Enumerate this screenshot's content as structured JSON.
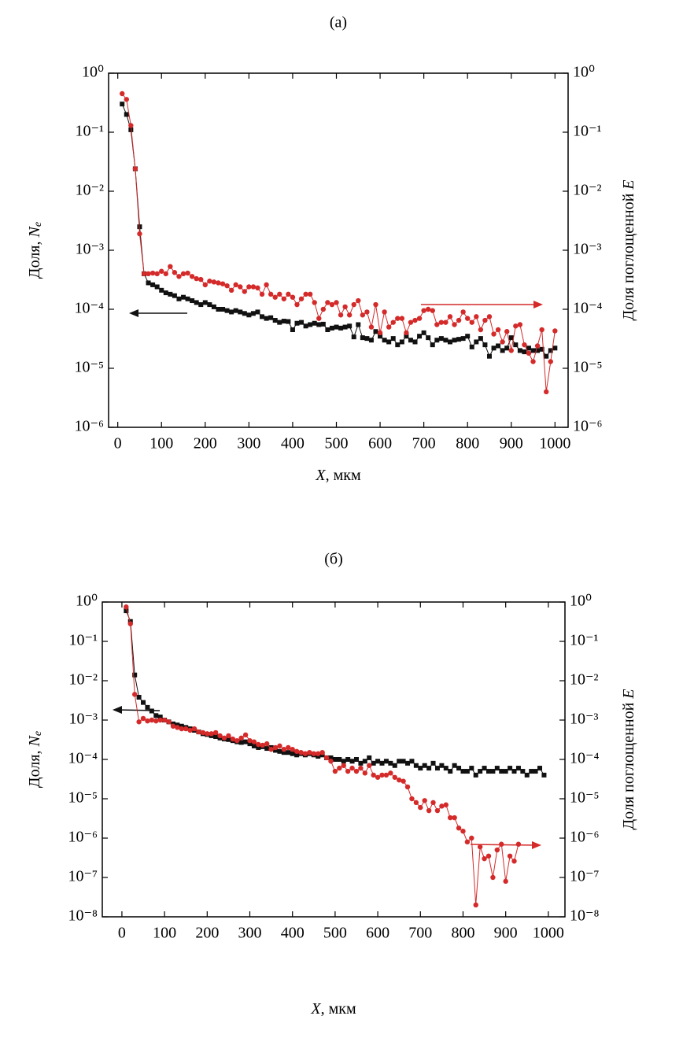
{
  "chart_data": [
    {
      "type": "line",
      "title": "(a)",
      "yscale": "log",
      "y2scale": "log",
      "xlabel_parts": [
        "X",
        ", мкм"
      ],
      "ylabel_parts": [
        "Доля, ",
        "N",
        "e"
      ],
      "y2label_parts": [
        "Доля поглощенной ",
        "E"
      ],
      "xlim": [
        -21,
        1030
      ],
      "xticks": [
        0,
        100,
        200,
        300,
        400,
        500,
        600,
        700,
        800,
        900,
        1000
      ],
      "ylim": [
        1e-06,
        1
      ],
      "yticks": [
        {
          "value": 1,
          "label": "10⁰"
        },
        {
          "value": 0.1,
          "label": "10⁻¹"
        },
        {
          "value": 0.01,
          "label": "10⁻²"
        },
        {
          "value": 0.001,
          "label": "10⁻³"
        },
        {
          "value": 0.0001,
          "label": "10⁻⁴"
        },
        {
          "value": 1e-05,
          "label": "10⁻⁵"
        },
        {
          "value": 1e-06,
          "label": "10⁻⁶"
        }
      ],
      "y2lim": [
        1e-06,
        1
      ],
      "y2ticks": [
        {
          "value": 1,
          "label": "10⁰"
        },
        {
          "value": 0.1,
          "label": "10⁻¹"
        },
        {
          "value": 0.01,
          "label": "10⁻²"
        },
        {
          "value": 0.001,
          "label": "10⁻³"
        },
        {
          "value": 0.0001,
          "label": "10⁻⁴"
        },
        {
          "value": 1e-05,
          "label": "10⁻⁵"
        },
        {
          "value": 1e-06,
          "label": "10⁻⁶"
        }
      ],
      "x": [
        10,
        20,
        30,
        40,
        50,
        60,
        70,
        80,
        90,
        100,
        110,
        120,
        130,
        140,
        150,
        160,
        170,
        180,
        190,
        200,
        210,
        220,
        230,
        240,
        250,
        260,
        270,
        280,
        290,
        300,
        310,
        320,
        330,
        340,
        350,
        360,
        370,
        380,
        390,
        400,
        410,
        420,
        430,
        440,
        450,
        460,
        470,
        480,
        490,
        500,
        510,
        520,
        530,
        540,
        550,
        560,
        570,
        580,
        590,
        600,
        610,
        620,
        630,
        640,
        650,
        660,
        670,
        680,
        690,
        700,
        710,
        720,
        730,
        740,
        750,
        760,
        770,
        780,
        790,
        800,
        810,
        820,
        830,
        840,
        850,
        860,
        870,
        880,
        890,
        900,
        910,
        920,
        930,
        940,
        950,
        960,
        970,
        980,
        990,
        1000
      ],
      "series": [
        {
          "color": "#111111",
          "marker": "square",
          "axis": "y",
          "values": [
            0.3,
            0.2,
            0.11,
            0.024,
            0.0025,
            0.0004,
            0.00028,
            0.00026,
            0.00024,
            0.00021,
            0.00019,
            0.00018,
            0.00017,
            0.00015,
            0.00016,
            0.00015,
            0.00014,
            0.00013,
            0.00012,
            0.00013,
            0.00012,
            0.00011,
            0.0001,
            0.0001,
            9.5e-05,
            9e-05,
            9.5e-05,
            9e-05,
            8.5e-05,
            8e-05,
            8.5e-05,
            9e-05,
            7.5e-05,
            7e-05,
            7.2e-05,
            6.5e-05,
            6e-05,
            6.3e-05,
            6.2e-05,
            4.5e-05,
            5.8e-05,
            6e-05,
            5.2e-05,
            5.5e-05,
            5.8e-05,
            5.5e-05,
            5.6e-05,
            4.5e-05,
            4.8e-05,
            5e-05,
            4.8e-05,
            5e-05,
            5.2e-05,
            3.4e-05,
            5.5e-05,
            3.3e-05,
            3.2e-05,
            3e-05,
            4.2e-05,
            3.5e-05,
            3e-05,
            2.8e-05,
            3.2e-05,
            2.5e-05,
            2.8e-05,
            3.5e-05,
            3e-05,
            2.8e-05,
            3.5e-05,
            4e-05,
            3.3e-05,
            2.5e-05,
            3e-05,
            3.2e-05,
            3e-05,
            2.8e-05,
            3e-05,
            3.1e-05,
            3.2e-05,
            3.5e-05,
            2.3e-05,
            2.8e-05,
            3.2e-05,
            2.5e-05,
            1.6e-05,
            2.2e-05,
            2.4e-05,
            2e-05,
            2.2e-05,
            3.3e-05,
            2.5e-05,
            2e-05,
            1.9e-05,
            2.2e-05,
            2e-05,
            2e-05,
            2.1e-05,
            1.6e-05,
            2e-05,
            2.2e-05
          ]
        },
        {
          "color": "#d42a2a",
          "marker": "circle",
          "axis": "y2",
          "values": [
            0.45,
            0.36,
            0.13,
            0.024,
            0.0019,
            0.0004,
            0.0004,
            0.00041,
            0.0004,
            0.00044,
            0.0004,
            0.00053,
            0.00042,
            0.00036,
            0.0004,
            0.00041,
            0.00036,
            0.00033,
            0.00032,
            0.00026,
            0.0003,
            0.00029,
            0.00028,
            0.00027,
            0.00025,
            0.00021,
            0.00026,
            0.00024,
            0.0002,
            0.00024,
            0.00024,
            0.00023,
            0.00018,
            0.00026,
            0.00018,
            0.00016,
            0.00018,
            0.00015,
            0.00018,
            0.00016,
            0.00012,
            0.00015,
            0.00018,
            0.00018,
            0.00013,
            7e-05,
            0.0001,
            0.00013,
            0.00012,
            0.00013,
            8e-05,
            0.00011,
            8e-05,
            0.00012,
            0.00014,
            8e-05,
            9e-05,
            5e-05,
            0.00012,
            4e-05,
            9e-05,
            5e-05,
            6e-05,
            7e-05,
            7e-05,
            4e-05,
            6e-05,
            6.5e-05,
            7e-05,
            9.5e-05,
            0.0001,
            9.5e-05,
            5.5e-05,
            6e-05,
            6e-05,
            7.5e-05,
            5.5e-05,
            6.5e-05,
            9e-05,
            7e-05,
            6e-05,
            7.5e-05,
            4.5e-05,
            6.5e-05,
            7.5e-05,
            3.8e-05,
            4.5e-05,
            2.8e-05,
            4.2e-05,
            2e-05,
            5.2e-05,
            5.5e-05,
            2.5e-05,
            1.8e-05,
            1.3e-05,
            2.4e-05,
            4.5e-05,
            4e-06,
            1.3e-05,
            4.3e-05
          ]
        }
      ]
    },
    {
      "type": "line",
      "title": "(б)",
      "yscale": "log",
      "y2scale": "log",
      "xlabel_parts": [
        "X",
        ", мкм"
      ],
      "ylabel_parts": [
        "Доля, ",
        "N",
        "e"
      ],
      "y2label_parts": [
        "Доля поглощенной ",
        "E"
      ],
      "xlim": [
        -46,
        1039
      ],
      "xticks": [
        0,
        100,
        200,
        300,
        400,
        500,
        600,
        700,
        800,
        900,
        1000
      ],
      "ylim": [
        1e-08,
        1
      ],
      "yticks": [
        {
          "value": 1,
          "label": "10⁰"
        },
        {
          "value": 0.1,
          "label": "10⁻¹"
        },
        {
          "value": 0.01,
          "label": "10⁻²"
        },
        {
          "value": 0.001,
          "label": "10⁻³"
        },
        {
          "value": 0.0001,
          "label": "10⁻⁴"
        },
        {
          "value": 1e-05,
          "label": "10⁻⁵"
        },
        {
          "value": 1e-06,
          "label": "10⁻⁶"
        },
        {
          "value": 1e-07,
          "label": "10⁻⁷"
        },
        {
          "value": 1e-08,
          "label": "10⁻⁸"
        }
      ],
      "y2lim": [
        1e-08,
        1
      ],
      "y2ticks": [
        {
          "value": 1,
          "label": "10⁰"
        },
        {
          "value": 0.1,
          "label": "10⁻¹"
        },
        {
          "value": 0.01,
          "label": "10⁻²"
        },
        {
          "value": 0.001,
          "label": "10⁻³"
        },
        {
          "value": 0.0001,
          "label": "10⁻⁴"
        },
        {
          "value": 1e-05,
          "label": "10⁻⁵"
        },
        {
          "value": 1e-06,
          "label": "10⁻⁶"
        },
        {
          "value": 1e-07,
          "label": "10⁻⁷"
        },
        {
          "value": 1e-08,
          "label": "10⁻⁸"
        }
      ],
      "x": [
        10,
        20,
        30,
        40,
        50,
        60,
        70,
        80,
        90,
        100,
        110,
        120,
        130,
        140,
        150,
        160,
        170,
        180,
        190,
        200,
        210,
        220,
        230,
        240,
        250,
        260,
        270,
        280,
        290,
        300,
        310,
        320,
        330,
        340,
        350,
        360,
        370,
        380,
        390,
        400,
        410,
        420,
        430,
        440,
        450,
        460,
        470,
        480,
        490,
        500,
        510,
        520,
        530,
        540,
        550,
        560,
        570,
        580,
        590,
        600,
        610,
        620,
        630,
        640,
        650,
        660,
        670,
        680,
        690,
        700,
        710,
        720,
        730,
        740,
        750,
        760,
        770,
        780,
        790,
        800,
        810,
        820,
        830,
        840,
        850,
        860,
        870,
        880,
        890,
        900,
        910,
        920,
        930,
        940,
        950,
        960,
        970,
        980,
        990
      ],
      "series": [
        {
          "color": "#111111",
          "marker": "square",
          "axis": "y",
          "values": [
            0.6,
            0.32,
            0.014,
            0.0038,
            0.0028,
            0.0021,
            0.0017,
            0.0013,
            0.0012,
            0.001,
            0.0009,
            0.0008,
            0.00075,
            0.0007,
            0.00065,
            0.0006,
            0.00055,
            0.0005,
            0.00045,
            0.00043,
            0.0004,
            0.00038,
            0.00035,
            0.00033,
            0.00032,
            0.0003,
            0.00028,
            0.00027,
            0.00028,
            0.00025,
            0.00022,
            0.0002,
            0.00021,
            0.00019,
            0.0002,
            0.00017,
            0.00016,
            0.00015,
            0.00015,
            0.00014,
            0.00013,
            0.00014,
            0.00013,
            0.00014,
            0.00013,
            0.00012,
            0.00013,
            0.00011,
            0.00011,
            0.0001,
            0.0001,
            9e-05,
            0.0001,
            9e-05,
            0.0001,
            8e-05,
            9e-05,
            0.00011,
            8e-05,
            9e-05,
            8e-05,
            9e-05,
            8e-05,
            7e-05,
            9e-05,
            9e-05,
            8e-05,
            9e-05,
            7e-05,
            6e-05,
            7e-05,
            6e-05,
            8e-05,
            6e-05,
            7e-05,
            6e-05,
            5e-05,
            7e-05,
            6e-05,
            5e-05,
            5e-05,
            6e-05,
            4e-05,
            5e-05,
            6e-05,
            5e-05,
            5e-05,
            6e-05,
            5e-05,
            5e-05,
            6e-05,
            5e-05,
            6e-05,
            5e-05,
            4e-05,
            5e-05,
            5e-05,
            6e-05,
            4e-05
          ]
        },
        {
          "color": "#d42a2a",
          "marker": "circle",
          "axis": "y2",
          "values": [
            0.75,
            0.28,
            0.0045,
            0.0009,
            0.0011,
            0.00095,
            0.001,
            0.00095,
            0.001,
            0.001,
            0.0009,
            0.0007,
            0.00065,
            0.0006,
            0.0006,
            0.00055,
            0.0006,
            0.0005,
            0.00048,
            0.00045,
            0.00045,
            0.00048,
            0.0004,
            0.00035,
            0.0004,
            0.00033,
            0.0003,
            0.00035,
            0.00042,
            0.0003,
            0.00028,
            0.00024,
            0.00023,
            0.00025,
            0.00018,
            0.0002,
            0.00022,
            0.00018,
            0.0002,
            0.00018,
            0.00016,
            0.00015,
            0.00014,
            0.00015,
            0.00014,
            0.00014,
            0.00015,
            0.00011,
            9e-05,
            5e-05,
            6e-05,
            7e-05,
            5e-05,
            6e-05,
            5e-05,
            6e-05,
            4.5e-05,
            7e-05,
            4e-05,
            3.5e-05,
            4e-05,
            4e-05,
            4.5e-05,
            3.5e-05,
            3e-05,
            2.8e-05,
            2e-05,
            1e-05,
            8e-06,
            6e-06,
            9e-06,
            5e-06,
            8e-06,
            5e-06,
            6.5e-06,
            7e-06,
            3.3e-06,
            3.3e-06,
            1.8e-06,
            1.5e-06,
            8e-07,
            1e-06,
            2e-08,
            6e-07,
            3e-07,
            3.5e-07,
            1e-07,
            5e-07,
            7e-07,
            8e-08,
            3.5e-07,
            2.6e-07,
            7e-07,
            null,
            null,
            null,
            null,
            null,
            null
          ]
        }
      ]
    }
  ]
}
